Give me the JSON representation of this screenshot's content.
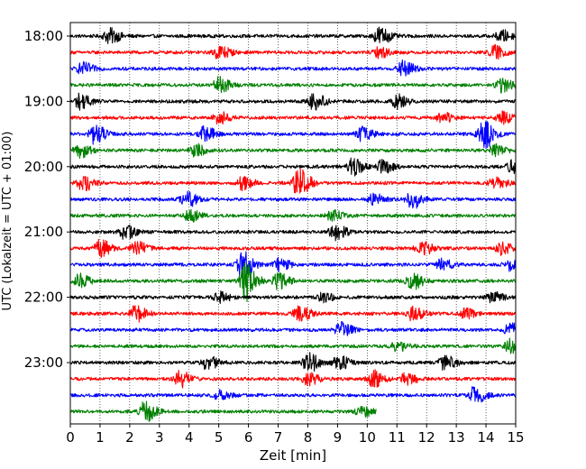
{
  "chart_data": {
    "type": "line",
    "title": "",
    "xlabel": "Zeit  [min]",
    "ylabel": "UTC (Lokalzeit = UTC + 01:00)",
    "xlim": [
      0,
      15
    ],
    "x_ticks": [
      0,
      1,
      2,
      3,
      4,
      5,
      6,
      7,
      8,
      9,
      10,
      11,
      12,
      13,
      14,
      15
    ],
    "x_tick_labels": [
      "0",
      "1",
      "2",
      "3",
      "4",
      "5",
      "6",
      "7",
      "8",
      "9",
      "10",
      "11",
      "12",
      "13",
      "14",
      "15"
    ],
    "y_tick_labels": [
      "18:00",
      "19:00",
      "20:00",
      "21:00",
      "22:00",
      "23:00"
    ],
    "grid": "vertical dotted",
    "trace_interval_minutes": 15,
    "trace_colors": [
      "#000000",
      "#ff0000",
      "#0000ff",
      "#008000"
    ],
    "traces": [
      {
        "start": "18:00",
        "end_min": 15,
        "color": "#000000",
        "bursts": [
          {
            "t": 1.3,
            "a": 0.45
          },
          {
            "t": 10.4,
            "a": 0.55
          },
          {
            "t": 14.5,
            "a": 0.35
          }
        ]
      },
      {
        "start": "18:15",
        "end_min": 15,
        "color": "#ff0000",
        "bursts": [
          {
            "t": 5.0,
            "a": 0.45
          },
          {
            "t": 10.4,
            "a": 0.3
          },
          {
            "t": 14.3,
            "a": 0.4
          }
        ]
      },
      {
        "start": "18:30",
        "end_min": 15,
        "color": "#0000ff",
        "bursts": [
          {
            "t": 0.4,
            "a": 0.35
          },
          {
            "t": 11.2,
            "a": 0.5
          }
        ]
      },
      {
        "start": "18:45",
        "end_min": 15,
        "color": "#008000",
        "bursts": [
          {
            "t": 5.0,
            "a": 0.45
          },
          {
            "t": 14.5,
            "a": 0.4
          }
        ]
      },
      {
        "start": "19:00",
        "end_min": 15,
        "color": "#000000",
        "bursts": [
          {
            "t": 0.3,
            "a": 0.45
          },
          {
            "t": 8.2,
            "a": 0.5
          },
          {
            "t": 11.0,
            "a": 0.4
          }
        ]
      },
      {
        "start": "19:15",
        "end_min": 15,
        "color": "#ff0000",
        "bursts": [
          {
            "t": 5.0,
            "a": 0.35
          },
          {
            "t": 12.5,
            "a": 0.3
          },
          {
            "t": 14.5,
            "a": 0.35
          }
        ]
      },
      {
        "start": "19:30",
        "end_min": 15,
        "color": "#0000ff",
        "bursts": [
          {
            "t": 0.8,
            "a": 0.6
          },
          {
            "t": 4.5,
            "a": 0.5
          },
          {
            "t": 9.8,
            "a": 0.4
          },
          {
            "t": 13.9,
            "a": 0.9
          }
        ]
      },
      {
        "start": "19:45",
        "end_min": 15,
        "color": "#008000",
        "bursts": [
          {
            "t": 0.3,
            "a": 0.45
          },
          {
            "t": 4.2,
            "a": 0.35
          },
          {
            "t": 14.3,
            "a": 0.35
          }
        ]
      },
      {
        "start": "20:00",
        "end_min": 15,
        "color": "#000000",
        "bursts": [
          {
            "t": 9.5,
            "a": 0.5
          },
          {
            "t": 10.5,
            "a": 0.4
          },
          {
            "t": 14.9,
            "a": 0.4
          }
        ]
      },
      {
        "start": "20:15",
        "end_min": 15,
        "color": "#ff0000",
        "bursts": [
          {
            "t": 0.4,
            "a": 0.5
          },
          {
            "t": 5.8,
            "a": 0.4
          },
          {
            "t": 7.7,
            "a": 1.1
          },
          {
            "t": 14.3,
            "a": 0.4
          }
        ]
      },
      {
        "start": "20:30",
        "end_min": 15,
        "color": "#0000ff",
        "bursts": [
          {
            "t": 3.9,
            "a": 0.45
          },
          {
            "t": 10.2,
            "a": 0.35
          },
          {
            "t": 11.5,
            "a": 0.55
          }
        ]
      },
      {
        "start": "20:45",
        "end_min": 15,
        "color": "#008000",
        "bursts": [
          {
            "t": 4.0,
            "a": 0.4
          },
          {
            "t": 8.8,
            "a": 0.3
          }
        ]
      },
      {
        "start": "21:00",
        "end_min": 15,
        "color": "#000000",
        "bursts": [
          {
            "t": 1.8,
            "a": 0.45
          },
          {
            "t": 8.9,
            "a": 0.5
          }
        ]
      },
      {
        "start": "21:15",
        "end_min": 15,
        "color": "#ff0000",
        "bursts": [
          {
            "t": 1.0,
            "a": 0.5
          },
          {
            "t": 2.2,
            "a": 0.4
          },
          {
            "t": 11.8,
            "a": 0.45
          },
          {
            "t": 14.5,
            "a": 0.4
          }
        ]
      },
      {
        "start": "21:30",
        "end_min": 15,
        "color": "#0000ff",
        "bursts": [
          {
            "t": 5.8,
            "a": 0.8
          },
          {
            "t": 7.0,
            "a": 0.4
          },
          {
            "t": 12.5,
            "a": 0.35
          },
          {
            "t": 14.8,
            "a": 0.35
          }
        ]
      },
      {
        "start": "21:45",
        "end_min": 15,
        "color": "#008000",
        "bursts": [
          {
            "t": 0.3,
            "a": 0.4
          },
          {
            "t": 5.9,
            "a": 1.2
          },
          {
            "t": 7.0,
            "a": 0.5
          },
          {
            "t": 11.5,
            "a": 0.5
          }
        ]
      },
      {
        "start": "22:00",
        "end_min": 15,
        "color": "#000000",
        "bursts": [
          {
            "t": 5.0,
            "a": 0.3
          },
          {
            "t": 8.5,
            "a": 0.25
          },
          {
            "t": 14.2,
            "a": 0.3
          }
        ]
      },
      {
        "start": "22:15",
        "end_min": 15,
        "color": "#ff0000",
        "bursts": [
          {
            "t": 2.2,
            "a": 0.5
          },
          {
            "t": 7.7,
            "a": 0.55
          },
          {
            "t": 11.5,
            "a": 0.4
          },
          {
            "t": 13.3,
            "a": 0.3
          }
        ]
      },
      {
        "start": "22:30",
        "end_min": 15,
        "color": "#0000ff",
        "bursts": [
          {
            "t": 9.1,
            "a": 0.45
          },
          {
            "t": 14.8,
            "a": 0.4
          }
        ]
      },
      {
        "start": "22:45",
        "end_min": 15,
        "color": "#008000",
        "bursts": [
          {
            "t": 11.0,
            "a": 0.3
          },
          {
            "t": 14.8,
            "a": 0.4
          }
        ]
      },
      {
        "start": "23:00",
        "end_min": 15,
        "color": "#000000",
        "bursts": [
          {
            "t": 4.6,
            "a": 0.4
          },
          {
            "t": 8.0,
            "a": 0.6
          },
          {
            "t": 9.0,
            "a": 0.45
          },
          {
            "t": 12.6,
            "a": 0.45
          }
        ]
      },
      {
        "start": "23:15",
        "end_min": 15,
        "color": "#ff0000",
        "bursts": [
          {
            "t": 3.7,
            "a": 0.5
          },
          {
            "t": 8.0,
            "a": 0.35
          },
          {
            "t": 10.2,
            "a": 0.5
          },
          {
            "t": 11.3,
            "a": 0.35
          }
        ]
      },
      {
        "start": "23:30",
        "end_min": 15,
        "color": "#0000ff",
        "bursts": [
          {
            "t": 5.0,
            "a": 0.3
          },
          {
            "t": 13.6,
            "a": 0.5
          }
        ]
      },
      {
        "start": "23:45",
        "end_min": 10.3,
        "color": "#008000",
        "bursts": [
          {
            "t": 2.5,
            "a": 0.6
          },
          {
            "t": 9.8,
            "a": 0.35
          }
        ]
      }
    ]
  }
}
